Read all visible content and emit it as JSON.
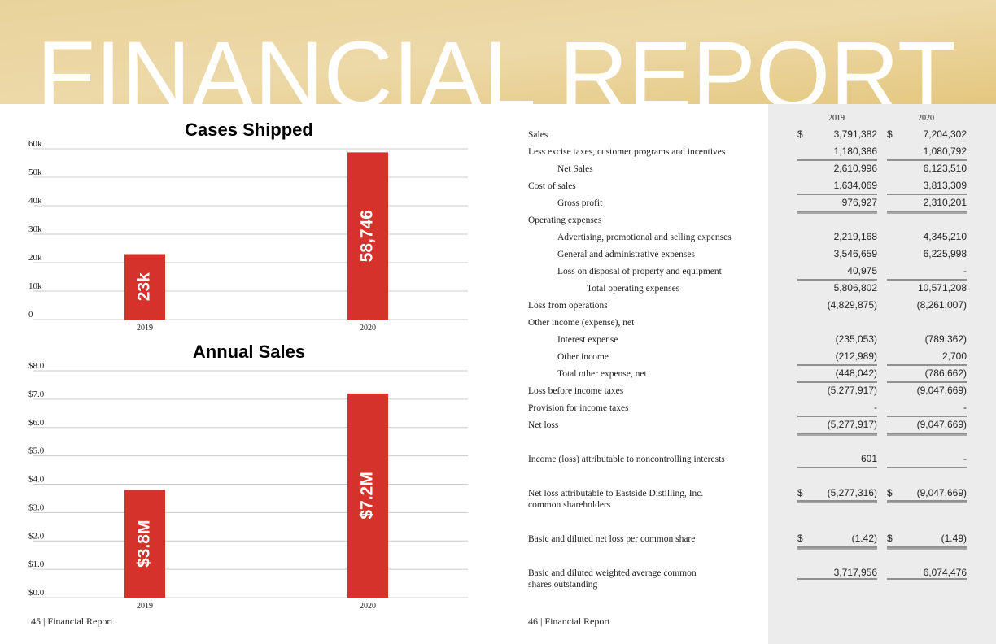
{
  "header": {
    "title": "FINANCIAL REPORT"
  },
  "chart_data": [
    {
      "type": "bar",
      "title": "Cases Shipped",
      "categories": [
        "2019",
        "2020"
      ],
      "values": [
        23000,
        58746
      ],
      "value_labels": [
        "23k",
        "58,746"
      ],
      "color": "#d5322b",
      "ylim": [
        0,
        60000
      ],
      "yticks": [
        0,
        {
          "value": 10000,
          "label": "10k"
        },
        {
          "value": 20000,
          "label": "20k"
        },
        {
          "value": 30000,
          "label": "30k"
        },
        {
          "value": 40000,
          "label": "40k"
        },
        {
          "value": 50000,
          "label": "50k"
        },
        {
          "value": 60000,
          "label": "60k"
        }
      ],
      "grid": true
    },
    {
      "type": "bar",
      "title": "Annual Sales",
      "categories": [
        "2019",
        "2020"
      ],
      "values": [
        3.8,
        7.2
      ],
      "value_labels": [
        "$3.8M",
        "$7.2M"
      ],
      "color": "#d5322b",
      "ylim": [
        0,
        8
      ],
      "yticks": [
        {
          "value": 0,
          "label": "$0.0"
        },
        {
          "value": 1,
          "label": "$1.0"
        },
        {
          "value": 2,
          "label": "$2.0"
        },
        {
          "value": 3,
          "label": "$3.0"
        },
        {
          "value": 4,
          "label": "$4.0"
        },
        {
          "value": 5,
          "label": "$5.0"
        },
        {
          "value": 6,
          "label": "$6.0"
        },
        {
          "value": 7,
          "label": "$7.0"
        },
        {
          "value": 8,
          "label": "$8.0"
        }
      ],
      "grid": true
    }
  ],
  "table": {
    "columns": [
      "2019",
      "2020"
    ],
    "rows": [
      {
        "label": "Sales",
        "symbols": [
          "$",
          "$"
        ],
        "values": [
          "3,791,382",
          "7,204,302"
        ]
      },
      {
        "label": "Less excise taxes, customer programs and incentives",
        "values": [
          "1,180,386",
          "1,080,792"
        ]
      },
      {
        "label": "Net Sales",
        "values": [
          "2,610,996",
          "6,123,510"
        ]
      },
      {
        "label": "Cost of sales",
        "values": [
          "1,634,069",
          "3,813,309"
        ]
      },
      {
        "label": "Gross profit",
        "values": [
          "976,927",
          "2,310,201"
        ]
      },
      {
        "label": "Operating expenses"
      },
      {
        "label": "Advertising, promotional and selling expenses",
        "values": [
          "2,219,168",
          "4,345,210"
        ]
      },
      {
        "label": "General and administrative expenses",
        "values": [
          "3,546,659",
          "6,225,998"
        ]
      },
      {
        "label": "Loss on disposal of property and equipment",
        "values": [
          "40,975",
          "-"
        ]
      },
      {
        "label": "Total operating expenses",
        "values": [
          "5,806,802",
          "10,571,208"
        ]
      },
      {
        "label": "Loss from operations",
        "values": [
          "(4,829,875)",
          "(8,261,007)"
        ]
      },
      {
        "label": "Other income (expense), net"
      },
      {
        "label": "Interest expense",
        "values": [
          "(235,053)",
          "(789,362)"
        ]
      },
      {
        "label": "Other income",
        "values": [
          "(212,989)",
          "2,700"
        ]
      },
      {
        "label": "Total other expense, net",
        "values": [
          "(448,042)",
          "(786,662)"
        ]
      },
      {
        "label": "Loss before income taxes",
        "values": [
          "(5,277,917)",
          "(9,047,669)"
        ]
      },
      {
        "label": "Provision for income taxes",
        "values": [
          "-",
          "-"
        ]
      },
      {
        "label": "Net loss",
        "values": [
          "(5,277,917)",
          "(9,047,669)"
        ]
      },
      {
        "label": "Income (loss) attributable to noncontrolling interests",
        "values": [
          "601",
          "-"
        ]
      },
      {
        "label": [
          "Net loss attributable to Eastside Distilling, Inc.",
          "common shareholders"
        ],
        "symbols": [
          "$",
          "$"
        ],
        "values": [
          "(5,277,316)",
          "(9,047,669)"
        ]
      },
      {
        "label": "Basic and diluted net loss per common share",
        "symbols": [
          "$",
          "$"
        ],
        "values": [
          "(1.42)",
          "(1.49)"
        ]
      },
      {
        "label": [
          "Basic and diluted weighted average common",
          "shares outstanding"
        ],
        "values": [
          "3,717,956",
          "6,074,476"
        ]
      }
    ]
  },
  "footer": {
    "left": "45 | Financial Report",
    "right": "46 | Financial Report"
  }
}
